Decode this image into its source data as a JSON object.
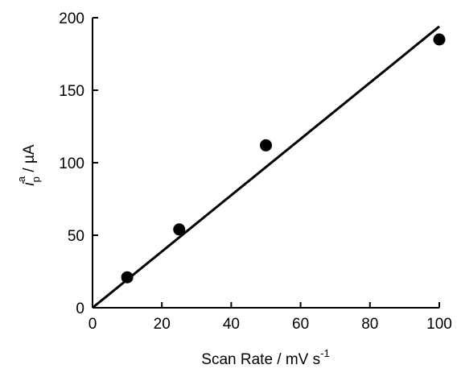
{
  "chart_data": {
    "type": "scatter",
    "x": [
      10,
      25,
      50,
      100
    ],
    "y": [
      21,
      54,
      112,
      185
    ],
    "fit_line": {
      "x": [
        0,
        100
      ],
      "y": [
        0,
        194
      ]
    },
    "xlim": [
      0,
      100
    ],
    "ylim": [
      0,
      200
    ],
    "xticks": [
      "0",
      "20",
      "40",
      "60",
      "80",
      "100"
    ],
    "yticks": [
      "0",
      "50",
      "100",
      "150",
      "200"
    ],
    "xlabel": {
      "text": "Scan Rate / mV s",
      "superscript": "-1"
    },
    "ylabel": {
      "italic": "i",
      "subscript": "p",
      "superscript": "a",
      "rest": " / µA"
    },
    "grid": false,
    "marker_color": "#000000",
    "line_color": "#000000"
  }
}
